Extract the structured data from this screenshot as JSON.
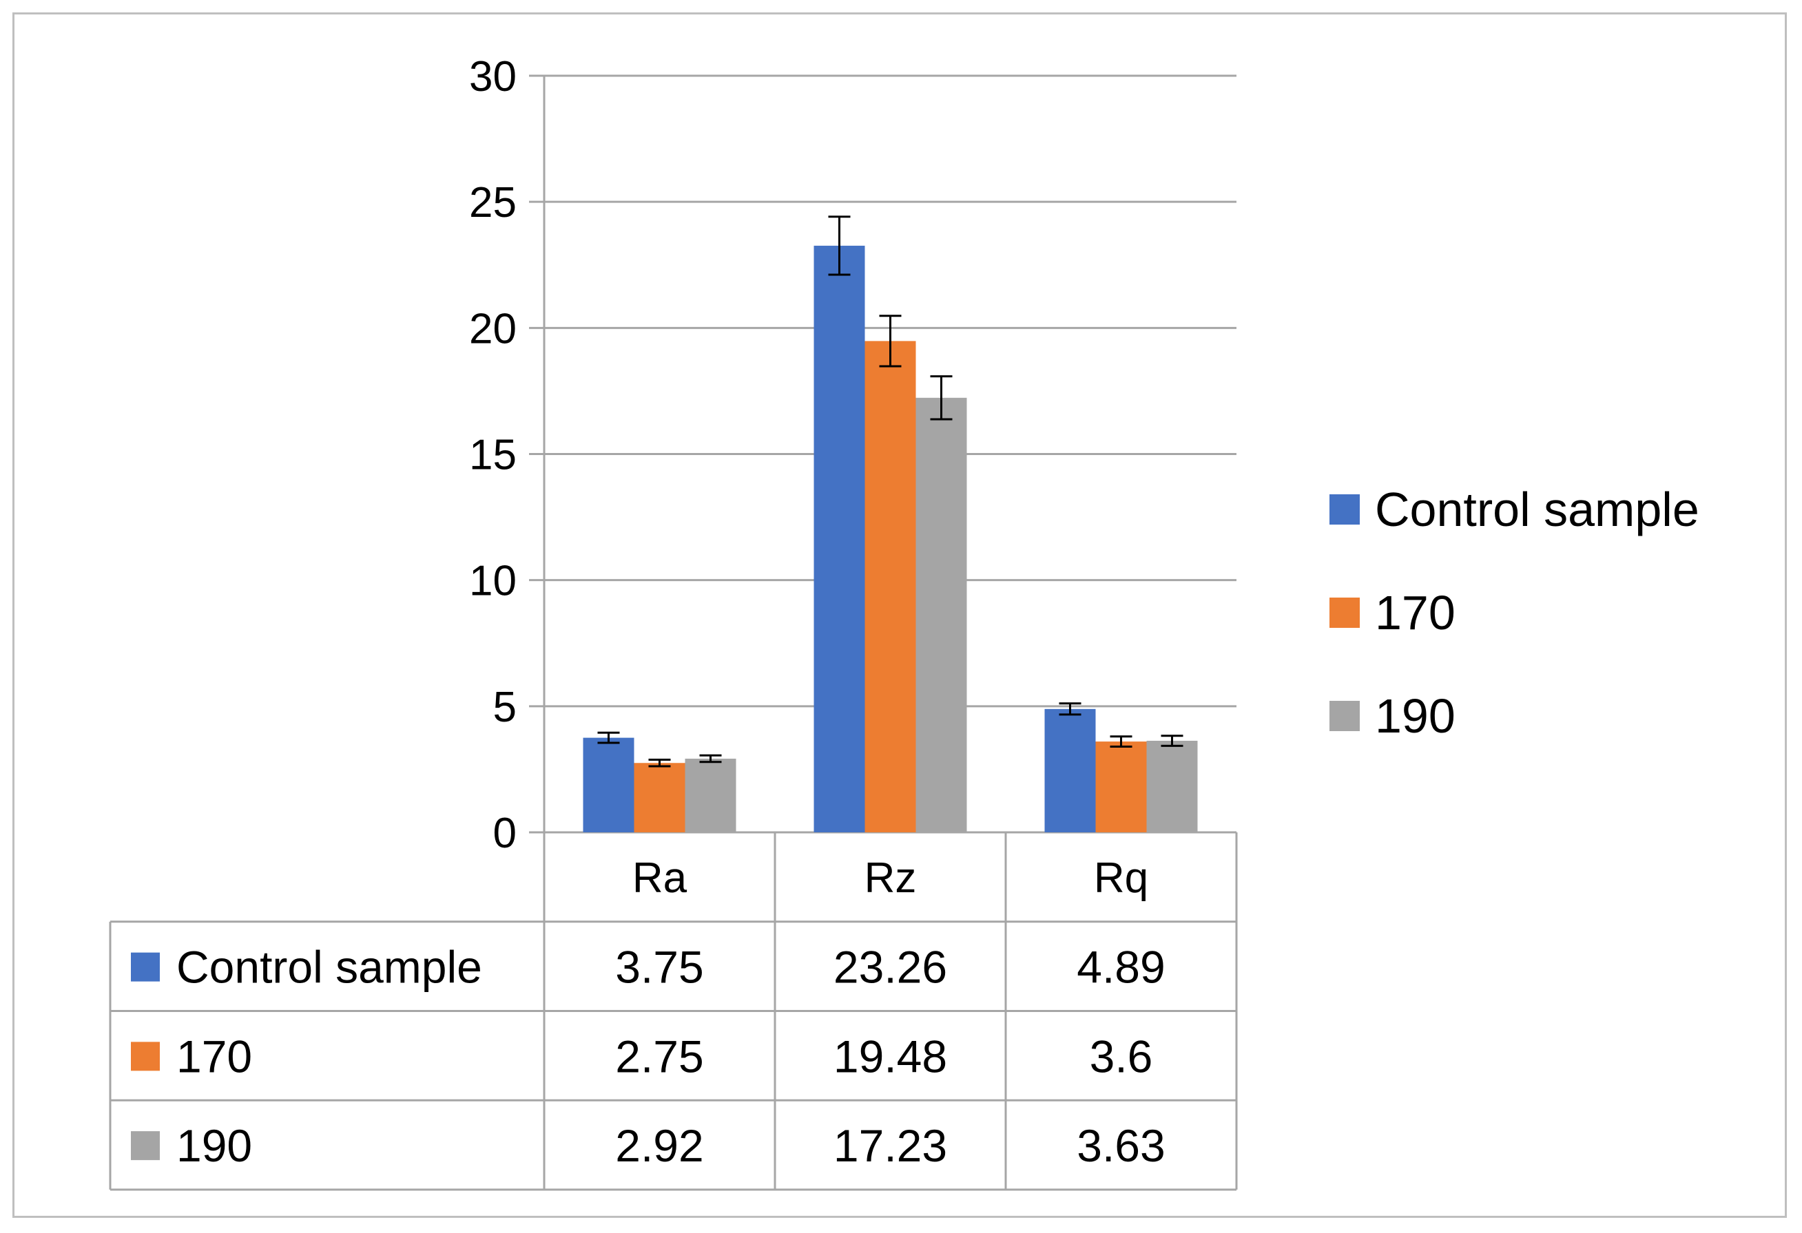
{
  "chart_data": {
    "type": "bar",
    "categories": [
      "Ra",
      "Rz",
      "Rq"
    ],
    "series": [
      {
        "name": "Control sample",
        "color": "#4472c4",
        "values": [
          3.75,
          23.26,
          4.89
        ],
        "errors": [
          0.2,
          1.15,
          0.22
        ]
      },
      {
        "name": "170",
        "color": "#ed7d31",
        "values": [
          2.75,
          19.48,
          3.6
        ],
        "errors": [
          0.13,
          1.0,
          0.2
        ]
      },
      {
        "name": "190",
        "color": "#a5a5a5",
        "values": [
          2.92,
          17.23,
          3.63
        ],
        "errors": [
          0.13,
          0.85,
          0.2
        ]
      }
    ],
    "title": "",
    "xlabel": "",
    "ylabel": "",
    "ylim": [
      0,
      30
    ],
    "yticks": [
      0,
      5,
      10,
      15,
      20,
      25,
      30
    ],
    "grid": true,
    "legend": "right",
    "data_table": {
      "rows": [
        {
          "label": "Control sample",
          "values": [
            "3.75",
            "23.26",
            "4.89"
          ]
        },
        {
          "label": "170",
          "values": [
            "2.75",
            "19.48",
            "3.6"
          ]
        },
        {
          "label": "190",
          "values": [
            "2.92",
            "17.23",
            "3.63"
          ]
        }
      ]
    }
  }
}
